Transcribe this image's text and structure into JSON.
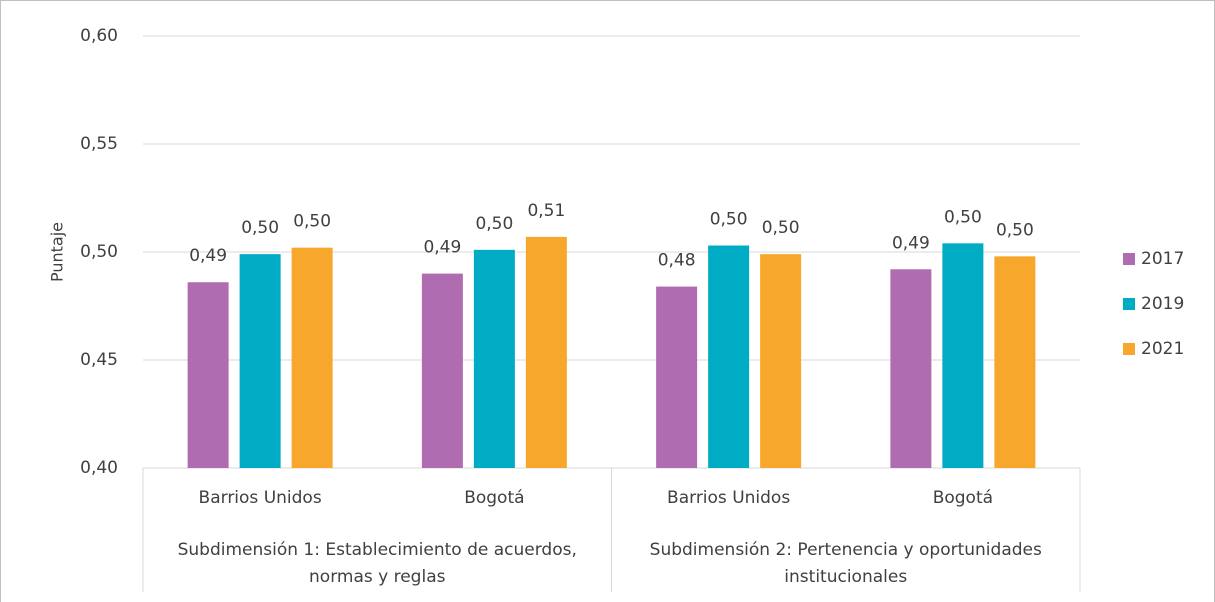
{
  "chart_data": {
    "type": "bar",
    "y_label": "Puntaje",
    "categories": [
      "Barrios Unidos",
      "Bogotá",
      "Barrios Unidos",
      "Bogotá"
    ],
    "groups": [
      {
        "label": "Subdimensión 1: Establecimiento de acuerdos, normas y reglas",
        "span": 2
      },
      {
        "label": "Subdimensión 2: Pertenencia y oportunidades institucionales",
        "span": 2
      }
    ],
    "series": [
      {
        "name": "2017",
        "color": "#b06cb0",
        "values": [
          0.486,
          0.49,
          0.484,
          0.492
        ],
        "value_labels": [
          "0,49",
          "0,49",
          "0,48",
          "0,49"
        ]
      },
      {
        "name": "2019",
        "color": "#00abc4",
        "values": [
          0.499,
          0.501,
          0.503,
          0.504
        ],
        "value_labels": [
          "0,50",
          "0,50",
          "0,50",
          "0,50"
        ]
      },
      {
        "name": "2021",
        "color": "#f7a72b",
        "values": [
          0.502,
          0.507,
          0.499,
          0.498
        ],
        "value_labels": [
          "0,50",
          "0,51",
          "0,50",
          "0,50"
        ]
      }
    ],
    "ylim": [
      0.4,
      0.6
    ],
    "yticks": [
      {
        "value": 0.4,
        "label": "0,40"
      },
      {
        "value": 0.45,
        "label": "0,45"
      },
      {
        "value": 0.5,
        "label": "0,50"
      },
      {
        "value": 0.55,
        "label": "0,55"
      },
      {
        "value": 0.6,
        "label": "0,60"
      }
    ],
    "grid": true,
    "legend": "right"
  }
}
